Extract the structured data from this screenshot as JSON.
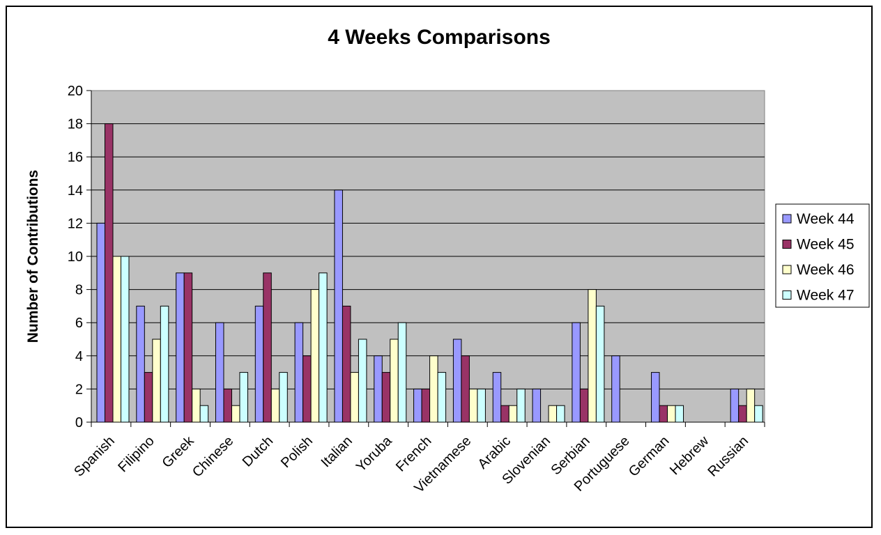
{
  "chart_data": {
    "type": "bar",
    "title": "4 Weeks Comparisons",
    "xlabel": "",
    "ylabel": "Number of Contributions",
    "ylim": [
      0,
      20
    ],
    "yticks": [
      0,
      2,
      4,
      6,
      8,
      10,
      12,
      14,
      16,
      18,
      20
    ],
    "grid": true,
    "legend_position": "right",
    "categories": [
      "Spanish",
      "Filipino",
      "Greek",
      "Chinese",
      "Dutch",
      "Polish",
      "Italian",
      "Yoruba",
      "French",
      "Vietnamese",
      "Arabic",
      "Slovenian",
      "Serbian",
      "Portuguese",
      "German",
      "Hebrew",
      "Russian"
    ],
    "series": [
      {
        "name": "Week 44",
        "color": "#9999ff",
        "values": [
          12,
          7,
          9,
          6,
          7,
          6,
          14,
          4,
          2,
          5,
          3,
          2,
          6,
          4,
          3,
          0,
          2
        ]
      },
      {
        "name": "Week 45",
        "color": "#993366",
        "values": [
          18,
          3,
          9,
          2,
          9,
          4,
          7,
          3,
          2,
          4,
          1,
          0,
          2,
          0,
          1,
          0,
          1
        ]
      },
      {
        "name": "Week 46",
        "color": "#ffffcc",
        "values": [
          10,
          5,
          2,
          1,
          2,
          8,
          3,
          5,
          4,
          2,
          1,
          1,
          8,
          0,
          1,
          0,
          2
        ]
      },
      {
        "name": "Week 47",
        "color": "#ccffff",
        "values": [
          10,
          7,
          1,
          3,
          3,
          9,
          5,
          6,
          3,
          2,
          2,
          1,
          7,
          0,
          1,
          0,
          1
        ]
      }
    ],
    "plot_background": "#c0c0c0"
  }
}
